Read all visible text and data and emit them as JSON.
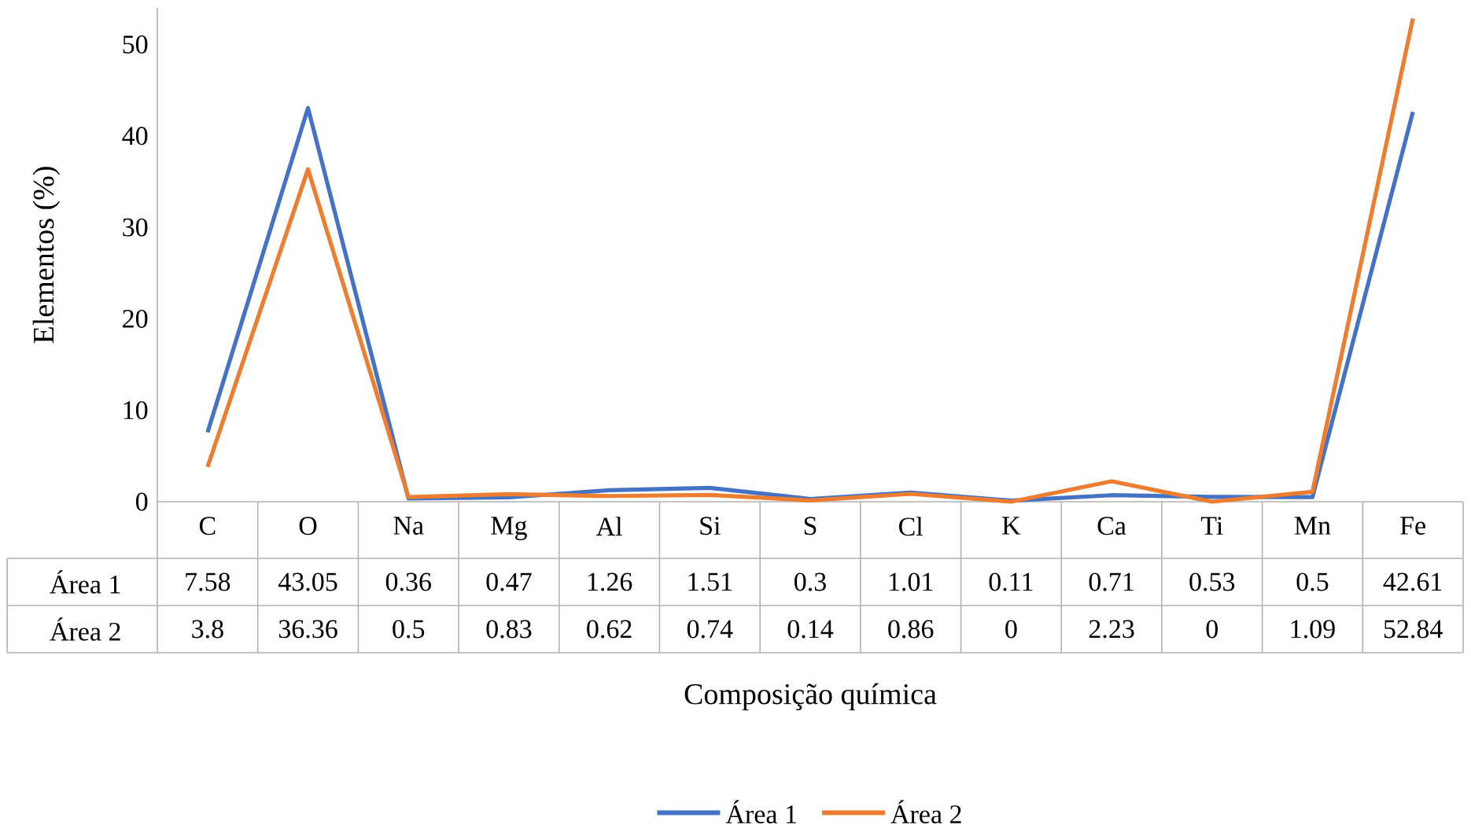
{
  "chart_data": {
    "type": "line",
    "xlabel": "Composição química",
    "ylabel": "Elementos (%)",
    "categories": [
      "C",
      "O",
      "Na",
      "Mg",
      "Al",
      "Si",
      "S",
      "Cl",
      "K",
      "Ca",
      "Ti",
      "Mn",
      "Fe"
    ],
    "series": [
      {
        "name": "Área 1",
        "color": "#4472c4",
        "values": [
          7.58,
          43.05,
          0.36,
          0.47,
          1.26,
          1.51,
          0.3,
          1.01,
          0.11,
          0.71,
          0.53,
          0.5,
          42.61
        ]
      },
      {
        "name": "Área 2",
        "color": "#ed7d31",
        "values": [
          3.8,
          36.36,
          0.5,
          0.83,
          0.62,
          0.74,
          0.14,
          0.86,
          0,
          2.23,
          0,
          1.09,
          52.84
        ]
      }
    ],
    "ylim": [
      0,
      54
    ],
    "yticks": [
      0,
      10,
      20,
      30,
      40,
      50
    ],
    "data_labels": true,
    "legend": "bottom"
  }
}
